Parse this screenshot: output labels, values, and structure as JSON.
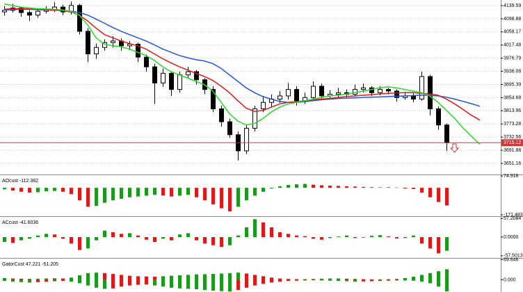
{
  "chart_data": [
    {
      "type": "candlestick",
      "open": [
        4120,
        4125,
        4132,
        4118,
        4110,
        4122,
        4128,
        4135,
        4120,
        4140,
        4060,
        3990,
        4010,
        4025,
        4030,
        4015,
        4020,
        3980,
        3950,
        3900,
        3930,
        3880,
        3925,
        3935,
        3910,
        3880,
        3820,
        3780,
        3740,
        3690,
        3760,
        3820,
        3840,
        3850,
        3860,
        3880,
        3845,
        3855,
        3890,
        3860,
        3865,
        3870,
        3865,
        3880,
        3885,
        3870,
        3880,
        3875,
        3855,
        3860,
        3850,
        3920,
        3820,
        3770
      ],
      "high": [
        4138,
        4145,
        4136,
        4125,
        4130,
        4138,
        4150,
        4142,
        4152,
        4145,
        4070,
        4022,
        4035,
        4045,
        4038,
        4030,
        4025,
        3988,
        3960,
        3945,
        3935,
        3935,
        3950,
        3940,
        3915,
        3890,
        3830,
        3790,
        3750,
        3770,
        3830,
        3860,
        3865,
        3875,
        3900,
        3890,
        3870,
        3905,
        3898,
        3878,
        3885,
        3880,
        3895,
        3898,
        3890,
        3890,
        3885,
        3880,
        3872,
        3868,
        3935,
        3925,
        3828,
        3775
      ],
      "low": [
        4108,
        4118,
        4105,
        4092,
        4102,
        4115,
        4120,
        4110,
        4112,
        4050,
        3965,
        3975,
        4000,
        4010,
        4000,
        4002,
        3965,
        3935,
        3835,
        3888,
        3860,
        3870,
        3915,
        3895,
        3865,
        3810,
        3765,
        3730,
        3660,
        3680,
        3750,
        3810,
        3825,
        3838,
        3848,
        3830,
        3835,
        3848,
        3850,
        3850,
        3855,
        3855,
        3858,
        3870,
        3860,
        3862,
        3865,
        3842,
        3848,
        3840,
        3845,
        3800,
        3755,
        3690
      ],
      "close": [
        4125,
        4132,
        4118,
        4110,
        4122,
        4128,
        4135,
        4120,
        4140,
        4060,
        3990,
        4010,
        4025,
        4030,
        4015,
        4020,
        3980,
        3950,
        3900,
        3930,
        3880,
        3925,
        3935,
        3910,
        3880,
        3820,
        3780,
        3740,
        3690,
        3760,
        3820,
        3840,
        3850,
        3860,
        3880,
        3845,
        3855,
        3890,
        3860,
        3865,
        3870,
        3865,
        3880,
        3885,
        3870,
        3880,
        3875,
        3855,
        3860,
        3850,
        3920,
        3820,
        3770,
        3715
      ],
      "bull_color": "#ffffff",
      "bear_color": "#000000",
      "series": [
        {
          "color": "#2255dd",
          "values": [
            4126,
            4127,
            4128,
            4128,
            4127,
            4126,
            4125,
            4124,
            4122,
            4118,
            4110,
            4098,
            4085,
            4072,
            4060,
            4050,
            4040,
            4030,
            4018,
            4005,
            3995,
            3985,
            3978,
            3972,
            3968,
            3960,
            3945,
            3925,
            3905,
            3885,
            3870,
            3858,
            3850,
            3843,
            3840,
            3840,
            3842,
            3845,
            3848,
            3850,
            3852,
            3853,
            3854,
            3855,
            3856,
            3857,
            3858,
            3859,
            3860,
            3861,
            3862,
            3862,
            3860,
            3856,
            3850,
            3843,
            3836,
            3828
          ]
        },
        {
          "color": "#e01818",
          "values": [
            4128,
            4130,
            4130,
            4129,
            4128,
            4127,
            4126,
            4124,
            4120,
            4110,
            4092,
            4070,
            4050,
            4040,
            4030,
            4022,
            4015,
            4005,
            3990,
            3975,
            3962,
            3950,
            3940,
            3930,
            3920,
            3908,
            3890,
            3870,
            3845,
            3822,
            3812,
            3815,
            3825,
            3835,
            3840,
            3842,
            3845,
            3848,
            3850,
            3852,
            3855,
            3858,
            3860,
            3862,
            3864,
            3866,
            3868,
            3869,
            3870,
            3870,
            3868,
            3866,
            3862,
            3850,
            3835,
            3818,
            3800,
            3785
          ]
        },
        {
          "color": "#22dd22",
          "values": [
            4145,
            4140,
            4135,
            4132,
            4130,
            4129,
            4128,
            4126,
            4122,
            4110,
            4080,
            4040,
            4020,
            4015,
            4012,
            4005,
            3995,
            3985,
            3970,
            3950,
            3935,
            3925,
            3915,
            3905,
            3895,
            3875,
            3840,
            3805,
            3782,
            3770,
            3775,
            3790,
            3810,
            3825,
            3835,
            3840,
            3845,
            3850,
            3855,
            3860,
            3862,
            3866,
            3870,
            3875,
            3880,
            3885,
            3888,
            3885,
            3880,
            3875,
            3870,
            3860,
            3840,
            3815,
            3790,
            3760,
            3735,
            3710
          ]
        }
      ],
      "ylim": [
        3618.9,
        4156.8
      ],
      "yticks": [
        4139.59,
        4098.88,
        4058.17,
        4017.48,
        3976.79,
        3936.08,
        3895.39,
        3854.68,
        3813.96,
        3773.28,
        3732.56,
        3691.88,
        3651.16
      ],
      "grid": true,
      "last_price": 3715.12,
      "last_price_color": "#e03030"
    },
    {
      "type": "bar",
      "title": "AOcust -112.382",
      "series": [
        {
          "up_color": "#1a9a1a",
          "down_color": "#e01818",
          "values": [
            -10,
            -18,
            -25,
            -30,
            -28,
            -22,
            -20,
            -25,
            -40,
            -80,
            -120,
            -115,
            -95,
            -80,
            -70,
            -60,
            -55,
            -50,
            -45,
            -48,
            -55,
            -50,
            -45,
            -60,
            -80,
            -105,
            -130,
            -150,
            -120,
            -80,
            -50,
            -25,
            -5,
            10,
            18,
            22,
            25,
            20,
            16,
            14,
            12,
            10,
            8,
            6,
            4,
            3,
            4,
            2,
            -5,
            -8,
            -30,
            -60,
            -90,
            -112
          ]
        }
      ],
      "ylim": [
        -176,
        80
      ],
      "yticks": [
        74.918,
        -171.483
      ]
    },
    {
      "type": "bar",
      "title": "ACcust -41.6036",
      "series": [
        {
          "up_color": "#1a9a1a",
          "down_color": "#e01818",
          "values": [
            -15,
            -18,
            -10,
            -5,
            5,
            10,
            8,
            -5,
            -20,
            -40,
            -35,
            -10,
            20,
            15,
            10,
            12,
            5,
            -8,
            -15,
            -5,
            -10,
            8,
            12,
            -10,
            -20,
            -25,
            -30,
            -25,
            5,
            30,
            55,
            45,
            30,
            15,
            10,
            5,
            3,
            -5,
            -8,
            -3,
            2,
            5,
            -3,
            -2,
            4,
            6,
            2,
            -4,
            -3,
            5,
            -20,
            -35,
            -50,
            -42
          ]
        }
      ],
      "ylim": [
        -62,
        62
      ],
      "yticks": [
        57.2084,
        {
          "value": 0,
          "label": "0.0000"
        },
        -57.5013
      ]
    },
    {
      "type": "bar",
      "title": "GatorCust 47.221 -51.205",
      "series": [
        {
          "up_color": "#1a9a1a",
          "down_color": "#e01818",
          "values": [
            8,
            6,
            5,
            4,
            5,
            6,
            7,
            6,
            10,
            20,
            30,
            32,
            30,
            26,
            22,
            18,
            16,
            15,
            14,
            16,
            18,
            20,
            22,
            24,
            25,
            26,
            28,
            30,
            32,
            28,
            22,
            16,
            10,
            6,
            4,
            3,
            3,
            4,
            5,
            6,
            6,
            5,
            4,
            3,
            2,
            2,
            3,
            4,
            8,
            14,
            22,
            30,
            38,
            47
          ]
        },
        {
          "up_color": "#1a9a1a",
          "down_color": "#e01818",
          "values": [
            -5,
            -8,
            -10,
            -12,
            -10,
            -8,
            -6,
            -5,
            -8,
            -15,
            -25,
            -35,
            -40,
            -38,
            -30,
            -25,
            -22,
            -20,
            -25,
            -30,
            -35,
            -38,
            -40,
            -42,
            -45,
            -48,
            -50,
            -52,
            -45,
            -35,
            -25,
            -18,
            -12,
            -8,
            -5,
            -4,
            -3,
            -2,
            -3,
            -4,
            -5,
            -6,
            -8,
            -7,
            -6,
            -5,
            -4,
            -3,
            -3,
            -4,
            -8,
            -15,
            -30,
            -51
          ]
        }
      ],
      "ylim": [
        -54,
        94
      ],
      "yticks": [
        89.646,
        {
          "value": 0,
          "label": "0.000"
        }
      ]
    }
  ]
}
